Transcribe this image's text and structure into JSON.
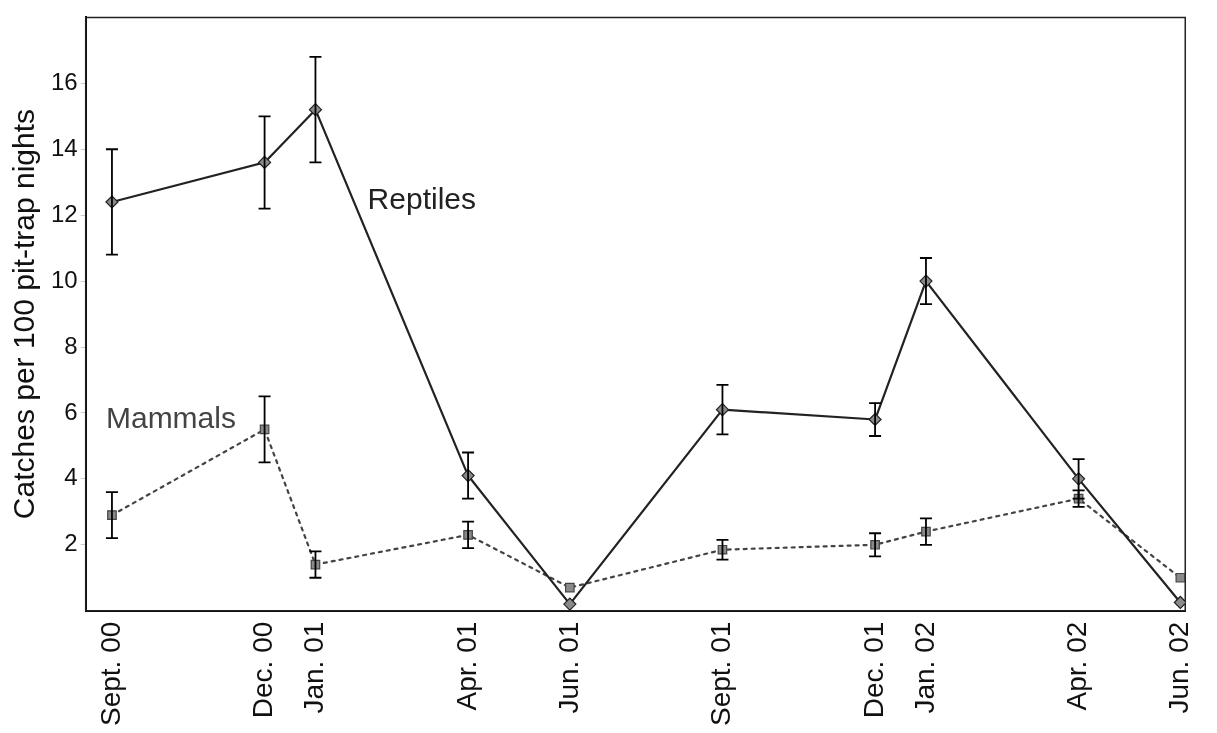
{
  "chart_data": {
    "type": "line",
    "ylabel": "Catches per 100 pit-trap nights",
    "x": [
      "2000-09",
      "2000-12",
      "2001-01",
      "2001-04",
      "2001-06",
      "2001-09",
      "2001-12",
      "2002-01",
      "2002-04",
      "2002-06"
    ],
    "xlim": [
      "2000-08-16",
      "2002-06-04"
    ],
    "xticks": [
      {
        "value": "2000-09",
        "label": "Sept. 00"
      },
      {
        "value": "2000-12",
        "label": "Dec. 00"
      },
      {
        "value": "2001-01",
        "label": "Jan. 01"
      },
      {
        "value": "2001-04",
        "label": "Apr. 01"
      },
      {
        "value": "2001-06",
        "label": "Jun. 01"
      },
      {
        "value": "2001-09",
        "label": "Sept. 01"
      },
      {
        "value": "2001-12",
        "label": "Dec. 01"
      },
      {
        "value": "2002-01",
        "label": "Jan. 02"
      },
      {
        "value": "2002-04",
        "label": "Apr. 02"
      },
      {
        "value": "2002-06",
        "label": "Jun. 02"
      }
    ],
    "ylim": [
      0,
      18
    ],
    "yticks": [
      2,
      4,
      6,
      8,
      10,
      12,
      14,
      16
    ],
    "series": [
      {
        "name": "Reptiles",
        "color": "#222222",
        "line_style": "solid",
        "marker": "diamond",
        "values": [
          12.4,
          13.6,
          15.2,
          4.1,
          0.2,
          6.1,
          5.8,
          10.0,
          4.0,
          0.25
        ],
        "errors": [
          1.6,
          1.4,
          1.6,
          0.7,
          null,
          0.75,
          0.5,
          0.7,
          0.6,
          null
        ]
      },
      {
        "name": "Mammals",
        "color": "#444444",
        "line_style": "dotted",
        "marker": "square",
        "values": [
          2.9,
          5.5,
          1.4,
          2.3,
          0.7,
          1.85,
          2.0,
          2.4,
          3.4,
          1.0
        ],
        "errors": [
          0.7,
          1.0,
          0.4,
          0.4,
          null,
          0.3,
          0.35,
          0.4,
          0.25,
          null
        ]
      }
    ],
    "grid": false,
    "legend": false
  }
}
